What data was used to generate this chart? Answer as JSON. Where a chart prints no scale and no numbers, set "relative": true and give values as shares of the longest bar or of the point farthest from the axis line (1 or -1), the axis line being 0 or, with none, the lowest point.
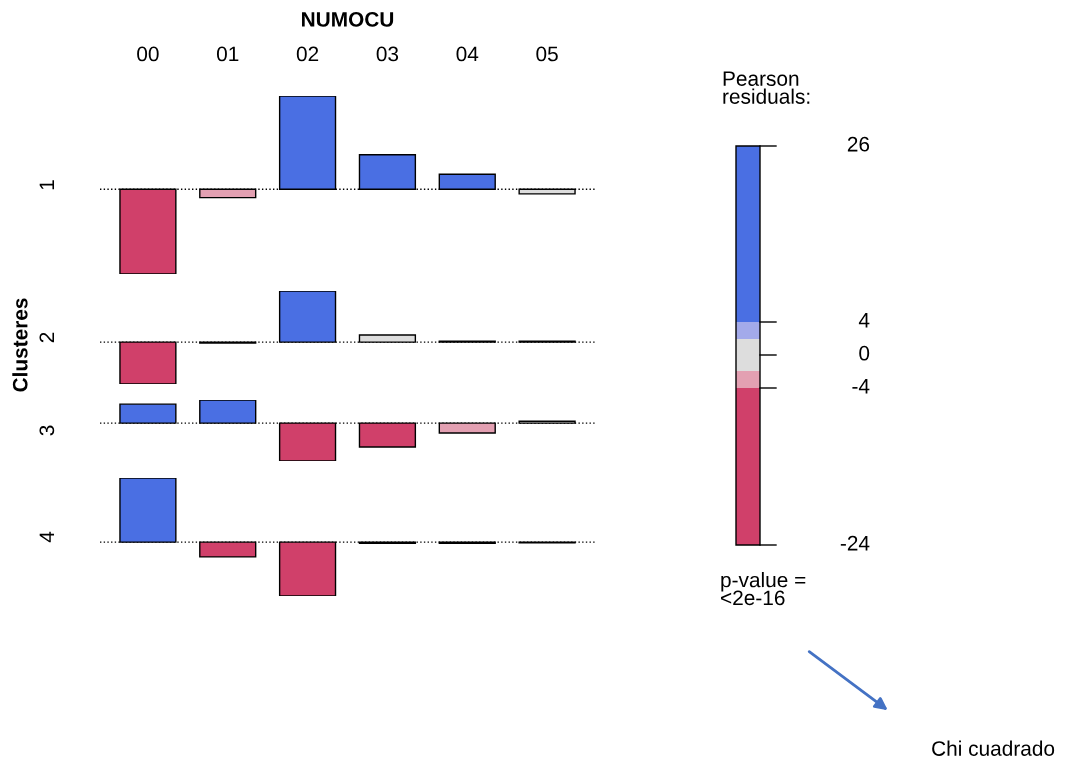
{
  "chart_data": [
    {
      "type": "bar",
      "title": "NUMOCU",
      "ylabel": "1",
      "annotations": [
        "Clusteres"
      ],
      "relative": true,
      "tick_labels": "x",
      "categories": [
        "00",
        "01",
        "02",
        "03",
        "04",
        "05"
      ],
      "values": [
        -0.91,
        -0.09,
        1,
        0.37,
        0.16,
        -0.05
      ],
      "colors": [
        "#d0406a",
        "#e3a0b2",
        "#4a6fe3",
        "#4a6fe3",
        "#4a6fe3",
        "#dddddd"
      ],
      "ref_lines": [
        {
          "axis": "y",
          "value": 0,
          "line_style": "dotted",
          "color": "#000000"
        }
      ]
    },
    {
      "type": "bar",
      "ylabel": "2",
      "relative": true,
      "tick_labels": false,
      "categories": [
        "00",
        "01",
        "02",
        "03",
        "04",
        "05"
      ],
      "values": [
        -0.82,
        -0.02,
        1,
        0.14,
        0.02,
        0.02
      ],
      "colors": [
        "#d0406a",
        "#dddddd",
        "#4a6fe3",
        "#dddddd",
        "#dddddd",
        "#dddddd"
      ],
      "ref_lines": [
        {
          "axis": "y",
          "value": 0,
          "line_style": "dotted",
          "color": "#000000"
        }
      ]
    },
    {
      "type": "bar",
      "ylabel": "3",
      "relative": true,
      "tick_labels": false,
      "categories": [
        "00",
        "01",
        "02",
        "03",
        "04",
        "05"
      ],
      "values": [
        0.5,
        0.61,
        -1,
        -0.63,
        -0.26,
        0.05
      ],
      "colors": [
        "#4a6fe3",
        "#4a6fe3",
        "#d0406a",
        "#d0406a",
        "#e3a0b2",
        "#dddddd"
      ],
      "ref_lines": [
        {
          "axis": "y",
          "value": 0,
          "line_style": "dotted",
          "color": "#000000"
        }
      ]
    },
    {
      "type": "bar",
      "ylabel": "4",
      "relative": true,
      "tick_labels": false,
      "categories": [
        "00",
        "01",
        "02",
        "03",
        "04",
        "05"
      ],
      "values": [
        1,
        -0.23,
        -0.84,
        -0.02,
        -0.02,
        -0.01
      ],
      "colors": [
        "#4a6fe3",
        "#d0406a",
        "#d0406a",
        "#dddddd",
        "#dddddd",
        "#dddddd"
      ],
      "ref_lines": [
        {
          "axis": "y",
          "value": 0,
          "line_style": "dotted",
          "color": "#000000"
        }
      ]
    },
    {
      "type": "other",
      "title": "Pearson\nresiduals:",
      "colors": [
        "#4a6fe3",
        "#a3aaea",
        "#dddddd",
        "#e3a0b2",
        "#d0406a"
      ],
      "annotations": [
        "26",
        "4",
        "0",
        "-4",
        "-24",
        "p-value =\n<2e-16",
        "Chi cuadrado"
      ]
    }
  ]
}
